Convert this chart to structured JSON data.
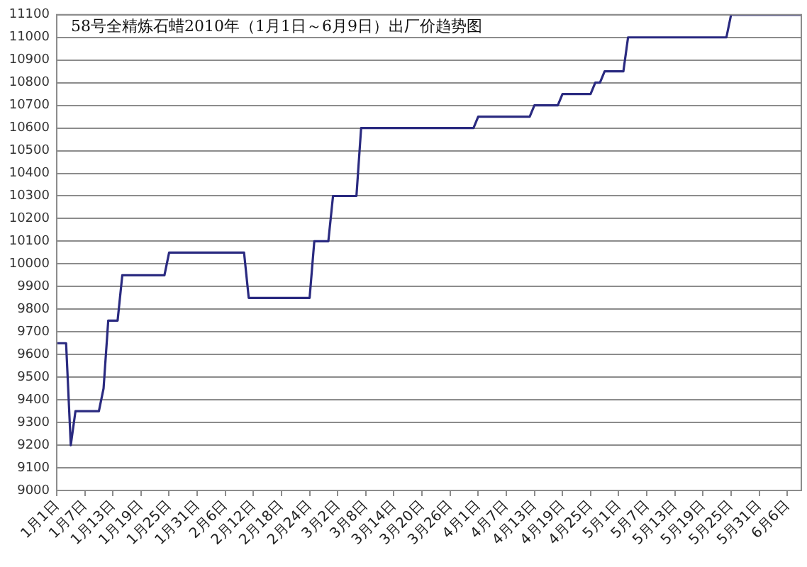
{
  "chart_data": {
    "type": "line",
    "title": "58号全精炼石蜡2010年（1月1日～6月9日）出厂价趋势图",
    "x": [
      "2010-01-01",
      "2010-01-03",
      "2010-01-04",
      "2010-01-05",
      "2010-01-10",
      "2010-01-11",
      "2010-01-12",
      "2010-01-14",
      "2010-01-15",
      "2010-01-24",
      "2010-01-25",
      "2010-02-10",
      "2010-02-11",
      "2010-02-24",
      "2010-02-25",
      "2010-02-28",
      "2010-03-01",
      "2010-03-06",
      "2010-03-07",
      "2010-03-31",
      "2010-04-01",
      "2010-04-12",
      "2010-04-13",
      "2010-04-18",
      "2010-04-19",
      "2010-04-25",
      "2010-04-26",
      "2010-04-27",
      "2010-04-28",
      "2010-05-02",
      "2010-05-03",
      "2010-05-24",
      "2010-05-25",
      "2010-06-09"
    ],
    "values": [
      9650,
      9650,
      9200,
      9350,
      9350,
      9450,
      9750,
      9750,
      9950,
      9950,
      10050,
      10050,
      9850,
      9850,
      10100,
      10100,
      10300,
      10300,
      10600,
      10600,
      10650,
      10650,
      10700,
      10700,
      10750,
      10750,
      10800,
      10800,
      10850,
      10850,
      11000,
      11000,
      11100,
      11100
    ],
    "color": "#2a2a80",
    "xlim": [
      "2010-01-01",
      "2010-06-09"
    ],
    "xticks": [
      {
        "value": "2010-01-01",
        "label": "1月1日"
      },
      {
        "value": "2010-01-07",
        "label": "1月7日"
      },
      {
        "value": "2010-01-13",
        "label": "1月13日"
      },
      {
        "value": "2010-01-19",
        "label": "1月19日"
      },
      {
        "value": "2010-01-25",
        "label": "1月25日"
      },
      {
        "value": "2010-01-31",
        "label": "1月31日"
      },
      {
        "value": "2010-02-06",
        "label": "2月6日"
      },
      {
        "value": "2010-02-12",
        "label": "2月12日"
      },
      {
        "value": "2010-02-18",
        "label": "2月18日"
      },
      {
        "value": "2010-02-24",
        "label": "2月24日"
      },
      {
        "value": "2010-03-02",
        "label": "3月2日"
      },
      {
        "value": "2010-03-08",
        "label": "3月8日"
      },
      {
        "value": "2010-03-14",
        "label": "3月14日"
      },
      {
        "value": "2010-03-20",
        "label": "3月20日"
      },
      {
        "value": "2010-03-26",
        "label": "3月26日"
      },
      {
        "value": "2010-04-01",
        "label": "4月1日"
      },
      {
        "value": "2010-04-07",
        "label": "4月7日"
      },
      {
        "value": "2010-04-13",
        "label": "4月13日"
      },
      {
        "value": "2010-04-19",
        "label": "4月19日"
      },
      {
        "value": "2010-04-25",
        "label": "4月25日"
      },
      {
        "value": "2010-05-01",
        "label": "5月1日"
      },
      {
        "value": "2010-05-07",
        "label": "5月7日"
      },
      {
        "value": "2010-05-13",
        "label": "5月13日"
      },
      {
        "value": "2010-05-19",
        "label": "5月19日"
      },
      {
        "value": "2010-05-25",
        "label": "5月25日"
      },
      {
        "value": "2010-05-31",
        "label": "5月31日"
      },
      {
        "value": "2010-06-06",
        "label": "6月6日"
      }
    ],
    "ylim": [
      9000,
      11100
    ],
    "yticks": [
      9000,
      9100,
      9200,
      9300,
      9400,
      9500,
      9600,
      9700,
      9800,
      9900,
      10000,
      10100,
      10200,
      10300,
      10400,
      10500,
      10600,
      10700,
      10800,
      10900,
      11000,
      11100
    ],
    "grid": "y"
  }
}
